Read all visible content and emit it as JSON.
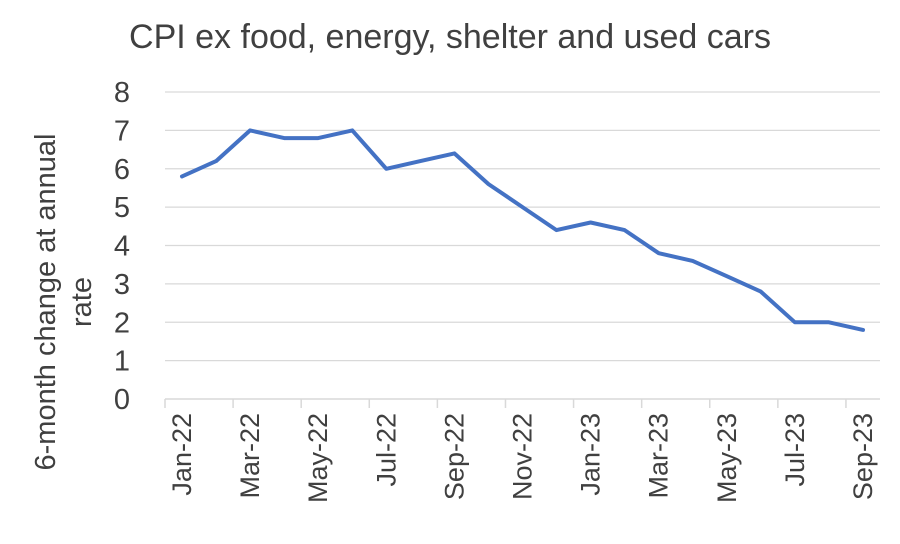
{
  "chart_data": {
    "type": "line",
    "title": "CPI ex food, energy, shelter and used cars",
    "ylabel_lines": [
      "6-month change at annual",
      "rate"
    ],
    "xlabel": "",
    "ylim": [
      0,
      8
    ],
    "yticks": [
      0,
      1,
      2,
      3,
      4,
      5,
      6,
      7,
      8
    ],
    "grid": true,
    "legend": "none",
    "x": [
      "Jan-22",
      "Feb-22",
      "Mar-22",
      "Apr-22",
      "May-22",
      "Jun-22",
      "Jul-22",
      "Aug-22",
      "Sep-22",
      "Oct-22",
      "Nov-22",
      "Dec-22",
      "Jan-23",
      "Feb-23",
      "Mar-23",
      "Apr-23",
      "May-23",
      "Jun-23",
      "Jul-23",
      "Aug-23",
      "Sep-23"
    ],
    "xtick_labels": [
      "Jan-22",
      "Mar-22",
      "May-22",
      "Jul-22",
      "Sep-22",
      "Nov-22",
      "Jan-23",
      "Mar-23",
      "May-23",
      "Jul-23",
      "Sep-23"
    ],
    "series": [
      {
        "values": [
          5.8,
          6.2,
          7.0,
          6.8,
          6.8,
          7.0,
          6.0,
          6.2,
          6.4,
          5.6,
          5.0,
          4.4,
          4.6,
          4.4,
          3.8,
          3.6,
          3.2,
          2.8,
          2.0,
          2.0,
          1.8
        ],
        "color": "#4472C4"
      }
    ]
  }
}
